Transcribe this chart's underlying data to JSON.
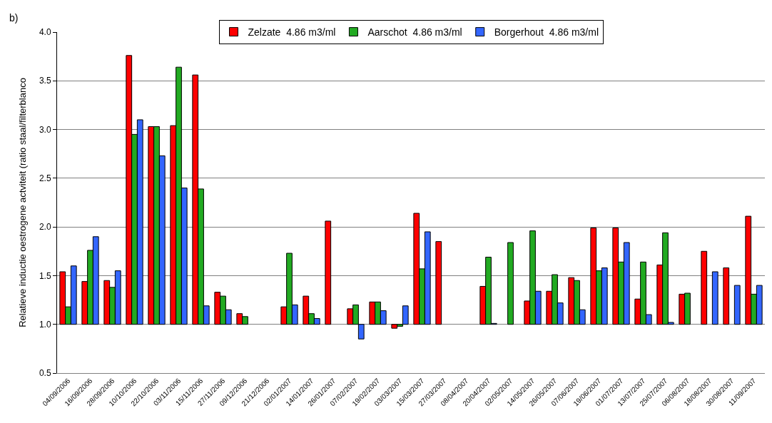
{
  "chart_data": {
    "type": "bar",
    "annotations": [
      "b)"
    ],
    "ylabel": "Relatieve inductie oestrogene actviteit (ratio staal/filterblanco",
    "categories": [
      "04/09/2006",
      "16/09/2006",
      "28/09/2006",
      "10/10/2006",
      "22/10/2006",
      "03/11/2006",
      "15/11/2006",
      "27/11/2006",
      "09/12/2006",
      "21/12/2006",
      "02/01/2007",
      "14/01/2007",
      "26/01/2007",
      "07/02/2007",
      "19/02/2007",
      "03/03/2007",
      "15/03/2007",
      "27/03/2007",
      "08/04/2007",
      "20/04/2007",
      "02/05/2007",
      "14/05/2007",
      "26/05/2007",
      "07/06/2007",
      "19/06/2007",
      "01/07/2007",
      "13/07/2007",
      "25/07/2007",
      "06/08/2007",
      "18/08/2007",
      "30/08/2007",
      "11/09/2007"
    ],
    "series": [
      {
        "name": "Zelzate  4.86 m3/ml",
        "color": "#ff0000",
        "base": [
          1,
          1,
          1,
          1,
          1,
          1,
          1,
          1,
          1,
          null,
          1,
          1,
          1,
          1,
          1,
          1,
          1,
          1,
          null,
          1,
          null,
          1,
          1,
          1,
          1,
          1,
          1,
          1,
          1,
          1,
          1,
          1
        ],
        "values": [
          0.54,
          0.44,
          0.45,
          2.76,
          2.03,
          2.04,
          2.56,
          0.33,
          0.11,
          null,
          0.18,
          0.29,
          1.06,
          0.16,
          0.23,
          -0.04,
          1.14,
          0.85,
          null,
          0.39,
          null,
          0.24,
          0.34,
          0.48,
          0.99,
          0.99,
          0.26,
          0.61,
          0.31,
          0.75,
          0.58,
          1.11
        ]
      },
      {
        "name": "Aarschot  4.86 m3/ml",
        "color": "#22aa22",
        "base": [
          1,
          1,
          1,
          1,
          1,
          1,
          1,
          1,
          1,
          null,
          1,
          1,
          null,
          1,
          1,
          1,
          1,
          null,
          null,
          1,
          1,
          1,
          1,
          1,
          1,
          1,
          1,
          1,
          1,
          null,
          null,
          1
        ],
        "values": [
          0.18,
          0.76,
          0.38,
          1.95,
          2.03,
          2.64,
          1.39,
          0.29,
          0.08,
          null,
          0.73,
          0.11,
          null,
          0.2,
          0.23,
          -0.02,
          0.57,
          null,
          null,
          0.69,
          0.84,
          0.96,
          0.51,
          0.45,
          0.55,
          0.64,
          0.64,
          0.94,
          0.32,
          null,
          null,
          0.31
        ]
      },
      {
        "name": "Borgerhout  4.86 m3/ml",
        "color": "#3366ff",
        "base": [
          1,
          1,
          1,
          1,
          1,
          1,
          1,
          1,
          null,
          null,
          1,
          1,
          null,
          1,
          1,
          1,
          1,
          null,
          null,
          1,
          null,
          1,
          1,
          1,
          1,
          1,
          1,
          1,
          null,
          1,
          1,
          1
        ],
        "values": [
          0.6,
          0.9,
          0.55,
          2.1,
          1.73,
          1.4,
          0.19,
          0.15,
          null,
          null,
          0.2,
          0.06,
          null,
          -0.15,
          0.14,
          0.19,
          0.95,
          null,
          null,
          0.01,
          null,
          0.34,
          0.22,
          0.15,
          0.58,
          0.84,
          0.1,
          0.02,
          null,
          0.54,
          0.4,
          0.4
        ]
      }
    ],
    "ylim": [
      0.5,
      4.0
    ],
    "yticks": [
      {
        "value": 0.5,
        "label": "0.5"
      },
      {
        "value": 1.0,
        "label": "1.0"
      },
      {
        "value": 1.5,
        "label": "1.5"
      },
      {
        "value": 2.0,
        "label": "2.0"
      },
      {
        "value": 2.5,
        "label": "2.5"
      },
      {
        "value": 3.0,
        "label": "3.0"
      },
      {
        "value": 3.5,
        "label": "3.5"
      },
      {
        "value": 4.0,
        "label": "4.0"
      }
    ],
    "grid": "y",
    "legend": "top"
  }
}
